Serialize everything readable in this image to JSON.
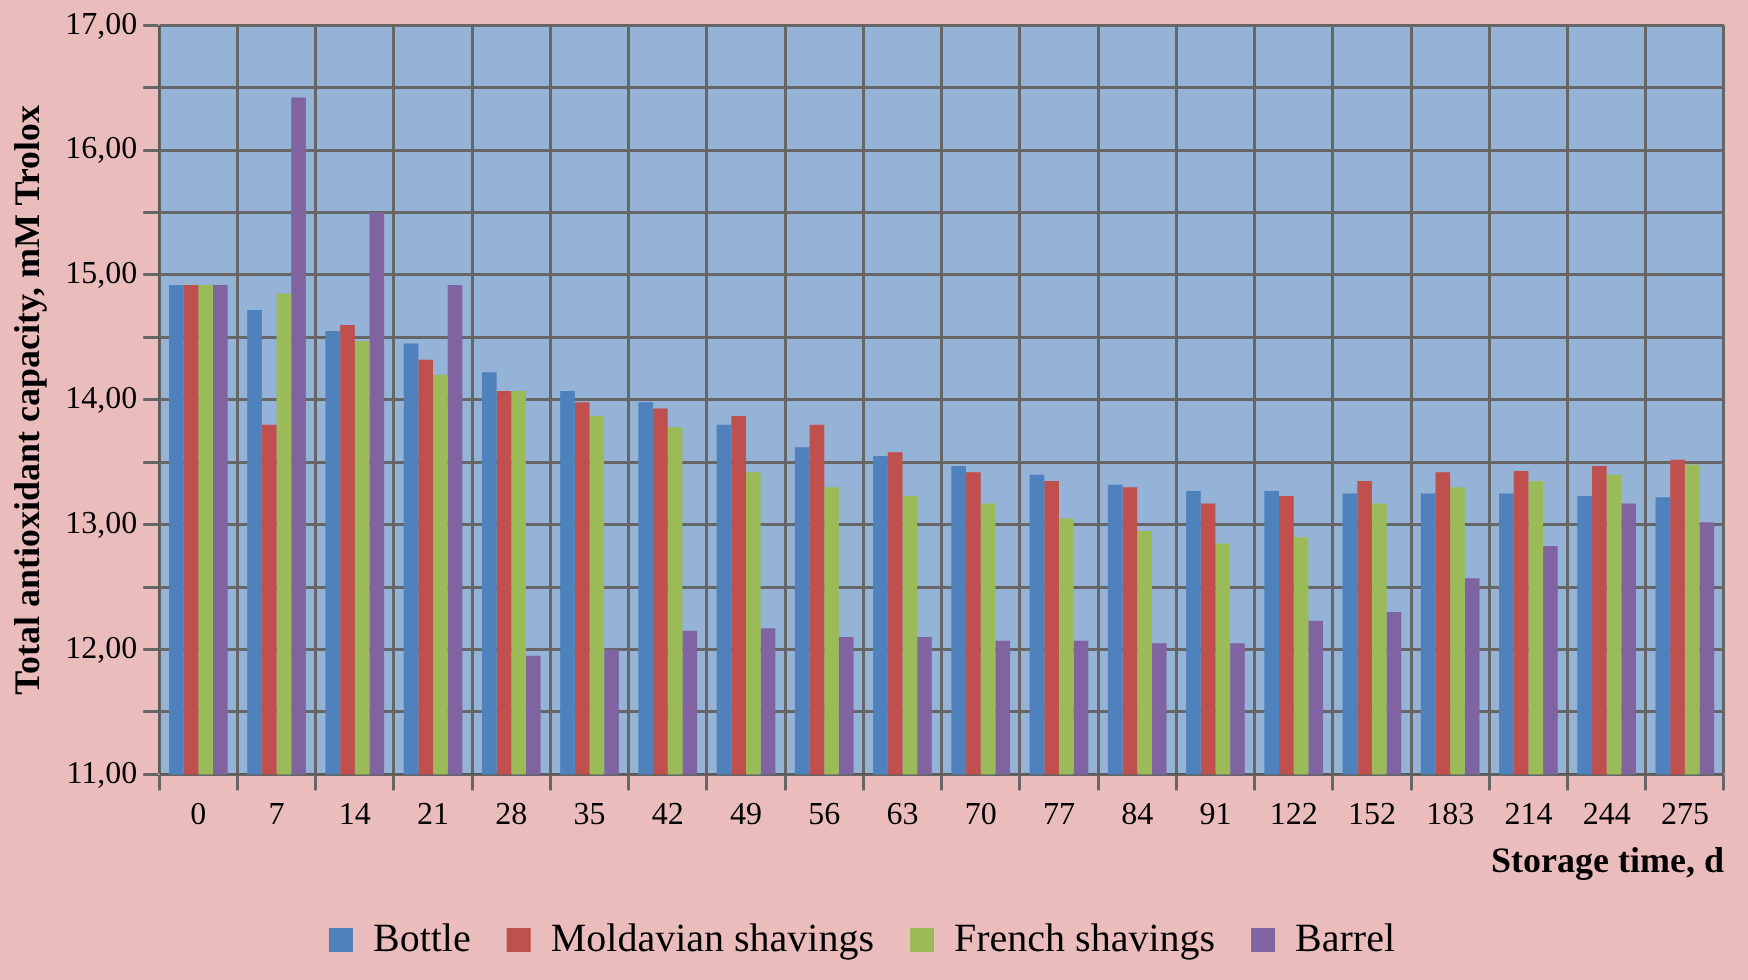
{
  "chart_data": {
    "type": "bar",
    "xlabel": "Storage time, d",
    "ylabel": "Total antioxidant capacity, mM Trolox",
    "categories": [
      "0",
      "7",
      "14",
      "21",
      "28",
      "35",
      "42",
      "49",
      "56",
      "63",
      "70",
      "77",
      "84",
      "91",
      "122",
      "152",
      "183",
      "214",
      "244",
      "275"
    ],
    "series": [
      {
        "name": "Bottle",
        "color": "#4f81bd",
        "values": [
          14.92,
          14.72,
          14.55,
          14.45,
          14.22,
          14.07,
          13.98,
          13.8,
          13.62,
          13.55,
          13.47,
          13.4,
          13.32,
          13.27,
          13.27,
          13.25,
          13.25,
          13.25,
          13.23,
          13.22
        ]
      },
      {
        "name": "Moldavian shavings",
        "color": "#c0504d",
        "values": [
          14.92,
          13.8,
          14.6,
          14.32,
          14.07,
          13.98,
          13.93,
          13.87,
          13.8,
          13.58,
          13.42,
          13.35,
          13.3,
          13.17,
          13.23,
          13.35,
          13.42,
          13.43,
          13.47,
          13.52
        ]
      },
      {
        "name": "French shavings",
        "color": "#9bbb59",
        "values": [
          14.92,
          14.85,
          14.47,
          14.2,
          14.07,
          13.87,
          13.78,
          13.42,
          13.3,
          13.23,
          13.17,
          13.05,
          12.95,
          12.85,
          12.9,
          13.17,
          13.3,
          13.35,
          13.4,
          13.48
        ]
      },
      {
        "name": "Barrel",
        "color": "#8064a2",
        "values": [
          14.92,
          16.42,
          15.5,
          14.92,
          11.95,
          12.0,
          12.15,
          12.17,
          12.1,
          12.1,
          12.07,
          12.07,
          12.05,
          12.05,
          12.23,
          12.3,
          12.57,
          12.83,
          13.17,
          13.02
        ]
      }
    ],
    "ylim": [
      11,
      17
    ],
    "yticks": [
      {
        "value": 11,
        "label": "11,00"
      },
      {
        "value": 11.5,
        "label": null
      },
      {
        "value": 12,
        "label": "12,00"
      },
      {
        "value": 12.5,
        "label": null
      },
      {
        "value": 13,
        "label": "13,00"
      },
      {
        "value": 13.5,
        "label": null
      },
      {
        "value": 14,
        "label": "14,00"
      },
      {
        "value": 14.5,
        "label": null
      },
      {
        "value": 15,
        "label": "15,00"
      },
      {
        "value": 15.5,
        "label": null
      },
      {
        "value": 16,
        "label": "16,00"
      },
      {
        "value": 16.5,
        "label": null
      },
      {
        "value": 17,
        "label": "17,00"
      }
    ],
    "grid": true,
    "legend": "bottom"
  }
}
